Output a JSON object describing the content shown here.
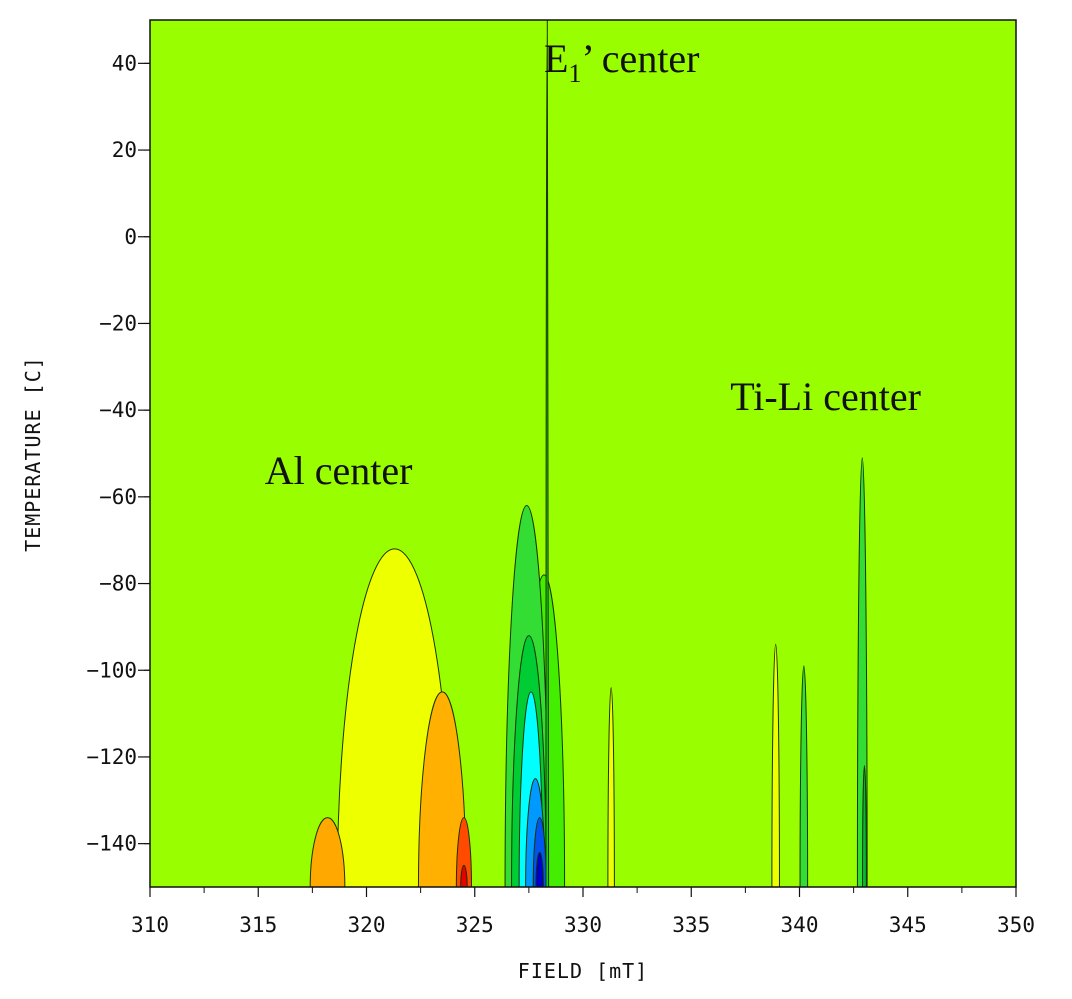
{
  "chart_data": {
    "type": "contour",
    "xlabel": "FIELD [mT]",
    "ylabel": "TEMPERATURE [C]",
    "xlim": [
      310,
      350
    ],
    "ylim": [
      -150,
      50
    ],
    "xticks": [
      "310",
      "315",
      "320",
      "325",
      "330",
      "335",
      "340",
      "345",
      "350"
    ],
    "yticks": [
      "40",
      "20",
      "0",
      "−20",
      "−40",
      "−60",
      "−80",
      "−100",
      "−120",
      "−140"
    ],
    "ytick_values": [
      40,
      20,
      0,
      -20,
      -40,
      -60,
      -80,
      -100,
      -120,
      -140
    ],
    "xtick_values": [
      310,
      315,
      320,
      325,
      330,
      335,
      340,
      345,
      350
    ],
    "background_color": "#99ff00",
    "annotations": [
      {
        "text": "E",
        "subscript": "1",
        "suffix": "’ center",
        "x": 328.2,
        "y": 38
      },
      {
        "text": "Ti-Li center",
        "x": 336.8,
        "y": -40
      },
      {
        "text": "Al center",
        "x": 315.3,
        "y": -57
      }
    ],
    "peaks": [
      {
        "name": "Al center",
        "x": 321.3,
        "width": 5.3,
        "top": -72,
        "color": "#eeff00"
      },
      {
        "name": "Al center",
        "x": 323.5,
        "width": 2.2,
        "top": -105,
        "color": "#ffb000"
      },
      {
        "name": "Al center",
        "x": 318.2,
        "width": 1.6,
        "top": -134,
        "color": "#ffa800"
      },
      {
        "name": "Al center",
        "x": 324.5,
        "width": 0.7,
        "top": -134,
        "color": "#ff4a00"
      },
      {
        "name": "Al center",
        "x": 324.5,
        "width": 0.3,
        "top": -145,
        "color": "#e80000"
      },
      {
        "name": "E1' center",
        "x": 328.2,
        "width": 1.9,
        "top": -78,
        "color": "#44ee00"
      },
      {
        "name": "E1' center",
        "x": 327.4,
        "width": 2.0,
        "top": -62,
        "color": "#33dd33"
      },
      {
        "name": "E1' center",
        "x": 327.5,
        "width": 1.6,
        "top": -92,
        "color": "#00cc33"
      },
      {
        "name": "E1' center",
        "x": 327.6,
        "width": 1.1,
        "top": -105,
        "color": "#00ffff"
      },
      {
        "name": "E1' center",
        "x": 327.8,
        "width": 0.9,
        "top": -125,
        "color": "#0099ff"
      },
      {
        "name": "E1' center",
        "x": 328.0,
        "width": 0.6,
        "top": -134,
        "color": "#0055ee"
      },
      {
        "name": "E1' center",
        "x": 328.0,
        "width": 0.35,
        "top": -142,
        "color": "#0000cc"
      },
      {
        "name": "E1' center",
        "x": 328.35,
        "width": 0.12,
        "top": 50,
        "color": "#22cc22"
      },
      {
        "name": "Ti-Li center",
        "x": 331.3,
        "width": 0.3,
        "top": -104,
        "color": "#eeff00"
      },
      {
        "name": "Ti-Li center",
        "x": 338.9,
        "width": 0.35,
        "top": -94,
        "color": "#eeff00"
      },
      {
        "name": "Ti-Li center",
        "x": 340.2,
        "width": 0.35,
        "top": -99,
        "color": "#33dd33"
      },
      {
        "name": "Ti-Li center",
        "x": 342.9,
        "width": 0.45,
        "top": -51,
        "color": "#33dd33"
      },
      {
        "name": "Ti-Li center",
        "x": 343.0,
        "width": 0.18,
        "top": -122,
        "color": "#00bb33"
      }
    ]
  }
}
